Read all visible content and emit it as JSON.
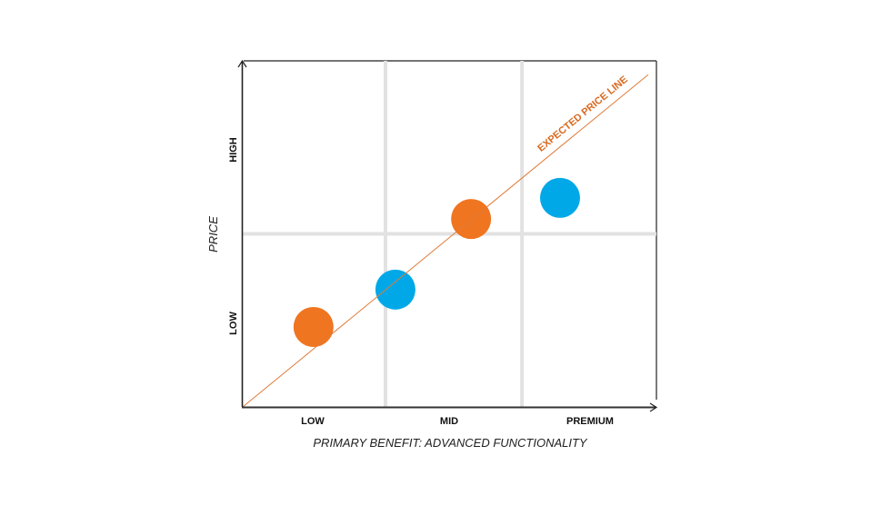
{
  "chart_data": {
    "type": "scatter",
    "title": "",
    "xlabel": "PRIMARY BENEFIT: ADVANCED FUNCTIONALITY",
    "ylabel": "PRICE",
    "x_tick_labels": [
      "LOW",
      "MID",
      "PREMIUM"
    ],
    "y_tick_labels": [
      "LOW",
      "HIGH"
    ],
    "xlim": [
      0,
      1
    ],
    "ylim": [
      0,
      1
    ],
    "grid": true,
    "grid_x": [
      0.345,
      0.675
    ],
    "grid_y": [
      0.5
    ],
    "reference_line": {
      "label": "EXPECTED PRICE LINE",
      "from": [
        0,
        0
      ],
      "to": [
        0.98,
        0.96
      ],
      "color": "#e07b39"
    },
    "series": [
      {
        "name": "orange",
        "color": "#f07520",
        "points": [
          {
            "x": 0.171,
            "y": 0.231
          },
          {
            "x": 0.552,
            "y": 0.543
          }
        ]
      },
      {
        "name": "blue",
        "color": "#00a8e8",
        "points": [
          {
            "x": 0.369,
            "y": 0.339
          },
          {
            "x": 0.767,
            "y": 0.604
          }
        ]
      }
    ],
    "legend": null
  },
  "labels": {
    "x_low": "LOW",
    "x_mid": "MID",
    "x_premium": "PREMIUM",
    "y_low": "LOW",
    "y_high": "HIGH",
    "x_title": "PRIMARY BENEFIT: ADVANCED FUNCTIONALITY",
    "y_title": "PRICE",
    "line_label": "EXPECTED PRICE LINE"
  },
  "colors": {
    "orange": "#f07520",
    "blue": "#00a8e8",
    "line": "#e07b39",
    "grid": "#e2e2e2",
    "axis": "#222222"
  }
}
